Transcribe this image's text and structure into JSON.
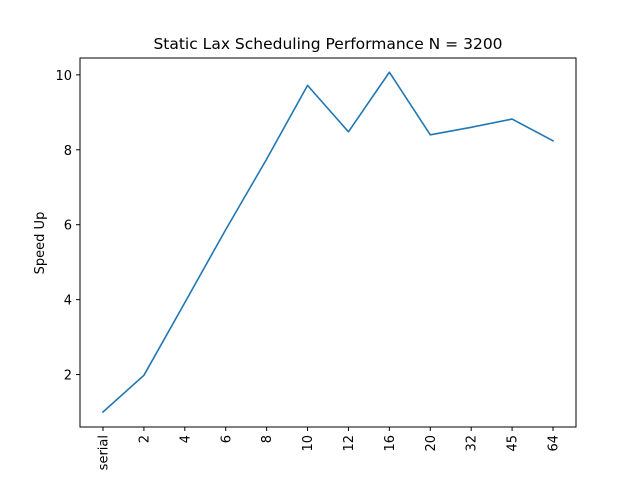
{
  "chart_data": {
    "type": "line",
    "title": "Static Lax Scheduling Performance N = 3200",
    "xlabel": "",
    "ylabel": "Speed Up",
    "categories": [
      "serial",
      "2",
      "4",
      "6",
      "8",
      "10",
      "12",
      "16",
      "20",
      "32",
      "45",
      "64"
    ],
    "series": [
      {
        "values": [
          1.0,
          1.98,
          3.92,
          5.87,
          7.75,
          9.72,
          8.48,
          10.07,
          8.4,
          8.6,
          8.82,
          8.24
        ]
      }
    ],
    "ylim": [
      0.6,
      10.45
    ],
    "yticks": [
      2,
      4,
      6,
      8,
      10
    ],
    "grid": false,
    "legend": "none",
    "colors": {
      "line": "#1f77b4"
    }
  }
}
